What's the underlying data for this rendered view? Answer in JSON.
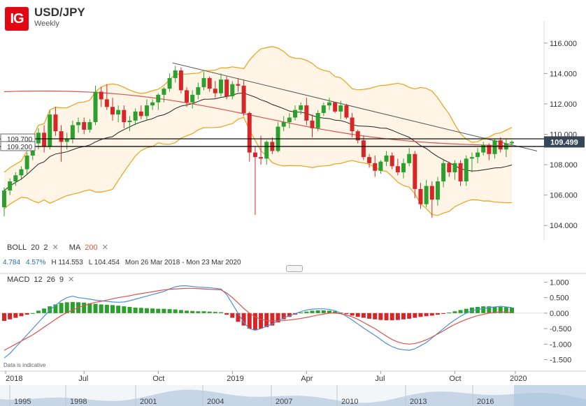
{
  "header": {
    "logo_text": "IG",
    "title": "USD/JPY",
    "subtitle": "Weekly"
  },
  "indicators": {
    "boll": {
      "name": "BOLL",
      "period": "20",
      "dev": "2"
    },
    "ma": {
      "name": "MA",
      "period": "200"
    },
    "macd": {
      "name": "MACD",
      "fast": "12",
      "slow": "26",
      "signal": "9"
    },
    "close_icon": "close-x-icon"
  },
  "stats": {
    "v1": "4.784",
    "v2": "4.57%",
    "high": "H 114.553",
    "low": "L 104.454",
    "range": "Mon 26 Mar 2018 - Mon 23 Mar 2020"
  },
  "disclaimer": "Data is indicative",
  "colors": {
    "up": "#2ca02c",
    "down": "#d62728",
    "boll": "#e8a317",
    "ma200": "#d9534f",
    "mid": "#222222",
    "macd_line": "#4a90d9",
    "signal_line": "#d9534f"
  },
  "chart_data": [
    {
      "type": "candlestick",
      "title": "USD/JPY",
      "subtitle": "Weekly",
      "ylim": [
        103,
        117
      ],
      "y_ticks": [
        "116.000",
        "114.000",
        "112.000",
        "110.000",
        "108.000",
        "106.000",
        "104.000"
      ],
      "x_labels": [
        "2018",
        "Jul",
        "Oct",
        "2019",
        "Apr",
        "Jul",
        "Oct",
        "2020"
      ],
      "horizontal_levels": [
        {
          "label": "109.700",
          "value": 109.7
        },
        {
          "label": "109.200",
          "value": 109.2
        }
      ],
      "last_price": {
        "label": "109.499",
        "value": 109.499
      },
      "trendline": {
        "from": [
          "2018-09",
          114.7
        ],
        "to": [
          "2020-01",
          108.9
        ]
      },
      "candles_ohlc": [
        [
          105.2,
          106.5,
          104.6,
          106.3
        ],
        [
          106.3,
          107.1,
          106.0,
          106.9
        ],
        [
          106.9,
          107.5,
          106.6,
          107.3
        ],
        [
          107.3,
          107.9,
          107.0,
          107.7
        ],
        [
          107.7,
          108.8,
          107.4,
          108.6
        ],
        [
          108.6,
          109.6,
          108.3,
          109.4
        ],
        [
          109.4,
          110.4,
          109.0,
          110.1
        ],
        [
          110.1,
          110.6,
          108.8,
          109.2
        ],
        [
          109.2,
          111.6,
          109.0,
          111.3
        ],
        [
          111.3,
          111.8,
          109.9,
          110.2
        ],
        [
          110.2,
          110.6,
          108.2,
          109.5
        ],
        [
          109.5,
          110.1,
          109.0,
          109.7
        ],
        [
          109.7,
          110.9,
          109.4,
          110.6
        ],
        [
          110.6,
          111.1,
          110.1,
          110.8
        ],
        [
          110.8,
          111.1,
          110.0,
          110.3
        ],
        [
          110.3,
          111.0,
          110.1,
          110.8
        ],
        [
          110.8,
          113.2,
          110.6,
          112.8
        ],
        [
          112.8,
          113.1,
          111.8,
          112.3
        ],
        [
          112.3,
          113.3,
          111.6,
          111.8
        ],
        [
          111.8,
          112.4,
          110.9,
          111.3
        ],
        [
          111.3,
          111.9,
          110.8,
          111.6
        ],
        [
          111.6,
          111.9,
          110.4,
          110.8
        ],
        [
          110.8,
          111.2,
          110.2,
          110.9
        ],
        [
          110.9,
          111.7,
          110.6,
          111.5
        ],
        [
          111.5,
          111.9,
          111.0,
          111.2
        ],
        [
          111.2,
          112.3,
          110.9,
          111.9
        ],
        [
          111.9,
          112.3,
          111.6,
          112.1
        ],
        [
          112.1,
          112.7,
          111.6,
          112.6
        ],
        [
          112.6,
          113.1,
          112.1,
          113.0
        ],
        [
          113.0,
          114.0,
          112.8,
          113.7
        ],
        [
          113.7,
          114.5,
          113.4,
          114.2
        ],
        [
          114.2,
          114.4,
          112.7,
          112.9
        ],
        [
          112.9,
          113.1,
          111.8,
          112.1
        ],
        [
          112.1,
          112.9,
          111.7,
          112.6
        ],
        [
          112.6,
          113.4,
          112.3,
          113.1
        ],
        [
          113.1,
          114.1,
          112.9,
          113.7
        ],
        [
          113.7,
          113.8,
          112.8,
          113.0
        ],
        [
          113.0,
          113.5,
          112.4,
          112.7
        ],
        [
          112.7,
          114.0,
          112.5,
          113.6
        ],
        [
          113.6,
          113.8,
          112.3,
          112.5
        ],
        [
          112.5,
          113.5,
          112.3,
          113.3
        ],
        [
          113.3,
          113.7,
          112.8,
          113.2
        ],
        [
          113.2,
          113.6,
          111.2,
          111.4
        ],
        [
          111.4,
          111.5,
          108.2,
          108.8
        ],
        [
          108.8,
          109.2,
          104.7,
          108.5
        ],
        [
          108.5,
          109.9,
          108.0,
          108.4
        ],
        [
          108.4,
          109.6,
          108.0,
          109.5
        ],
        [
          109.5,
          109.8,
          108.7,
          108.9
        ],
        [
          108.9,
          110.8,
          108.8,
          110.5
        ],
        [
          110.5,
          111.2,
          110.2,
          110.8
        ],
        [
          110.8,
          111.4,
          110.4,
          111.1
        ],
        [
          111.1,
          111.9,
          110.9,
          111.6
        ],
        [
          111.6,
          112.1,
          111.3,
          111.9
        ],
        [
          111.9,
          112.4,
          110.6,
          110.9
        ],
        [
          110.9,
          111.3,
          109.8,
          110.4
        ],
        [
          110.4,
          111.6,
          110.2,
          111.4
        ],
        [
          111.4,
          112.1,
          111.2,
          111.9
        ],
        [
          111.9,
          112.4,
          111.6,
          112.1
        ],
        [
          112.1,
          112.0,
          111.4,
          111.5
        ],
        [
          111.5,
          112.2,
          111.0,
          111.9
        ],
        [
          111.9,
          112.0,
          111.0,
          111.1
        ],
        [
          111.1,
          111.4,
          109.8,
          110.2
        ],
        [
          110.2,
          110.3,
          109.4,
          109.6
        ],
        [
          109.6,
          109.9,
          108.3,
          108.5
        ],
        [
          108.5,
          108.7,
          107.8,
          108.1
        ],
        [
          108.1,
          108.6,
          107.2,
          107.6
        ],
        [
          107.6,
          108.3,
          107.4,
          108.2
        ],
        [
          108.2,
          108.9,
          107.9,
          108.6
        ],
        [
          108.6,
          108.8,
          107.7,
          107.9
        ],
        [
          107.9,
          108.4,
          107.3,
          107.5
        ],
        [
          107.5,
          108.4,
          107.1,
          108.1
        ],
        [
          108.1,
          109.1,
          107.9,
          108.7
        ],
        [
          108.7,
          108.9,
          105.8,
          106.4
        ],
        [
          106.4,
          106.8,
          105.1,
          105.4
        ],
        [
          105.4,
          107.0,
          105.2,
          106.6
        ],
        [
          106.6,
          106.9,
          104.5,
          105.7
        ],
        [
          105.7,
          107.2,
          105.3,
          106.9
        ],
        [
          106.9,
          108.3,
          106.5,
          108.1
        ],
        [
          108.1,
          108.2,
          107.2,
          107.5
        ],
        [
          107.5,
          108.3,
          107.0,
          108.1
        ],
        [
          108.1,
          108.3,
          106.6,
          106.9
        ],
        [
          106.9,
          108.6,
          106.6,
          108.4
        ],
        [
          108.4,
          108.8,
          107.5,
          108.5
        ],
        [
          108.5,
          109.1,
          108.1,
          108.8
        ],
        [
          108.8,
          109.5,
          108.6,
          109.3
        ],
        [
          109.3,
          109.4,
          108.3,
          108.7
        ],
        [
          108.7,
          109.7,
          108.4,
          109.6
        ],
        [
          109.6,
          109.8,
          108.8,
          109.0
        ],
        [
          109.0,
          109.7,
          108.5,
          109.4
        ],
        [
          109.4,
          109.6,
          109.2,
          109.5
        ]
      ]
    },
    {
      "type": "line",
      "title": "MACD 12 26 9",
      "ylim": [
        -1.6,
        1.1
      ],
      "y_ticks": [
        "1.000",
        "0.500",
        "0.000",
        "-0.500",
        "-1.000",
        "-1.500"
      ],
      "histogram": [
        -0.25,
        -0.2,
        -0.15,
        -0.1,
        -0.05,
        0.0,
        0.08,
        0.15,
        0.22,
        0.28,
        0.33,
        0.35,
        0.36,
        0.35,
        0.34,
        0.32,
        0.3,
        0.28,
        0.27,
        0.26,
        0.24,
        0.22,
        0.2,
        0.18,
        0.17,
        0.16,
        0.15,
        0.14,
        0.14,
        0.13,
        0.12,
        0.1,
        0.08,
        0.07,
        0.06,
        0.06,
        0.05,
        0.04,
        0.03,
        -0.05,
        -0.15,
        -0.28,
        -0.4,
        -0.5,
        -0.55,
        -0.5,
        -0.45,
        -0.4,
        -0.3,
        -0.2,
        -0.12,
        -0.05,
        0.02,
        0.05,
        0.08,
        0.09,
        0.09,
        0.08,
        0.06,
        0.02,
        -0.03,
        -0.08,
        -0.12,
        -0.15,
        -0.18,
        -0.2,
        -0.22,
        -0.23,
        -0.23,
        -0.22,
        -0.2,
        -0.18,
        -0.15,
        -0.12,
        -0.1,
        -0.08,
        -0.05,
        -0.02,
        0.02,
        0.06,
        0.1,
        0.14,
        0.18,
        0.2,
        0.22,
        0.22,
        0.21,
        0.2,
        0.19,
        0.18
      ],
      "macd_line": [
        -1.45,
        -1.3,
        -1.1,
        -0.9,
        -0.7,
        -0.5,
        -0.3,
        -0.1,
        0.1,
        0.25,
        0.4,
        0.5,
        0.55,
        0.5,
        0.48,
        0.45,
        0.42,
        0.4,
        0.38,
        0.36,
        0.35,
        0.36,
        0.4,
        0.45,
        0.5,
        0.55,
        0.6,
        0.65,
        0.7,
        0.78,
        0.85,
        0.88,
        0.88,
        0.86,
        0.84,
        0.83,
        0.82,
        0.8,
        0.78,
        0.6,
        0.3,
        0.0,
        -0.3,
        -0.5,
        -0.55,
        -0.5,
        -0.42,
        -0.35,
        -0.25,
        -0.15,
        -0.08,
        -0.02,
        0.05,
        0.1,
        0.13,
        0.14,
        0.14,
        0.12,
        0.08,
        0.0,
        -0.1,
        -0.22,
        -0.35,
        -0.48,
        -0.6,
        -0.72,
        -0.85,
        -0.98,
        -1.08,
        -1.15,
        -1.18,
        -1.2,
        -1.15,
        -1.05,
        -0.95,
        -0.8,
        -0.65,
        -0.5,
        -0.35,
        -0.22,
        -0.1,
        0.0,
        0.08,
        0.12,
        0.15,
        0.18,
        0.2,
        0.22,
        0.2,
        0.18
      ],
      "signal_line": [
        -1.2,
        -1.1,
        -1.0,
        -0.9,
        -0.8,
        -0.7,
        -0.58,
        -0.45,
        -0.33,
        -0.2,
        -0.08,
        0.02,
        0.1,
        0.18,
        0.24,
        0.3,
        0.35,
        0.38,
        0.42,
        0.46,
        0.5,
        0.53,
        0.56,
        0.6,
        0.63,
        0.66,
        0.69,
        0.72,
        0.75,
        0.77,
        0.78,
        0.79,
        0.8,
        0.8,
        0.79,
        0.78,
        0.77,
        0.76,
        0.75,
        0.65,
        0.5,
        0.33,
        0.15,
        0.0,
        -0.12,
        -0.2,
        -0.24,
        -0.25,
        -0.25,
        -0.24,
        -0.22,
        -0.2,
        -0.17,
        -0.14,
        -0.1,
        -0.06,
        -0.03,
        0.0,
        0.0,
        -0.02,
        -0.06,
        -0.12,
        -0.2,
        -0.3,
        -0.4,
        -0.5,
        -0.62,
        -0.74,
        -0.85,
        -0.93,
        -0.98,
        -1.0,
        -0.98,
        -0.93,
        -0.86,
        -0.77,
        -0.67,
        -0.57,
        -0.46,
        -0.36,
        -0.28,
        -0.2,
        -0.14,
        -0.08,
        -0.04,
        0.0,
        0.02,
        0.04,
        0.03,
        0.02
      ]
    }
  ],
  "navigator": {
    "labels": [
      "1995",
      "1998",
      "2001",
      "2004",
      "2007",
      "2010",
      "2013",
      "2016"
    ]
  }
}
